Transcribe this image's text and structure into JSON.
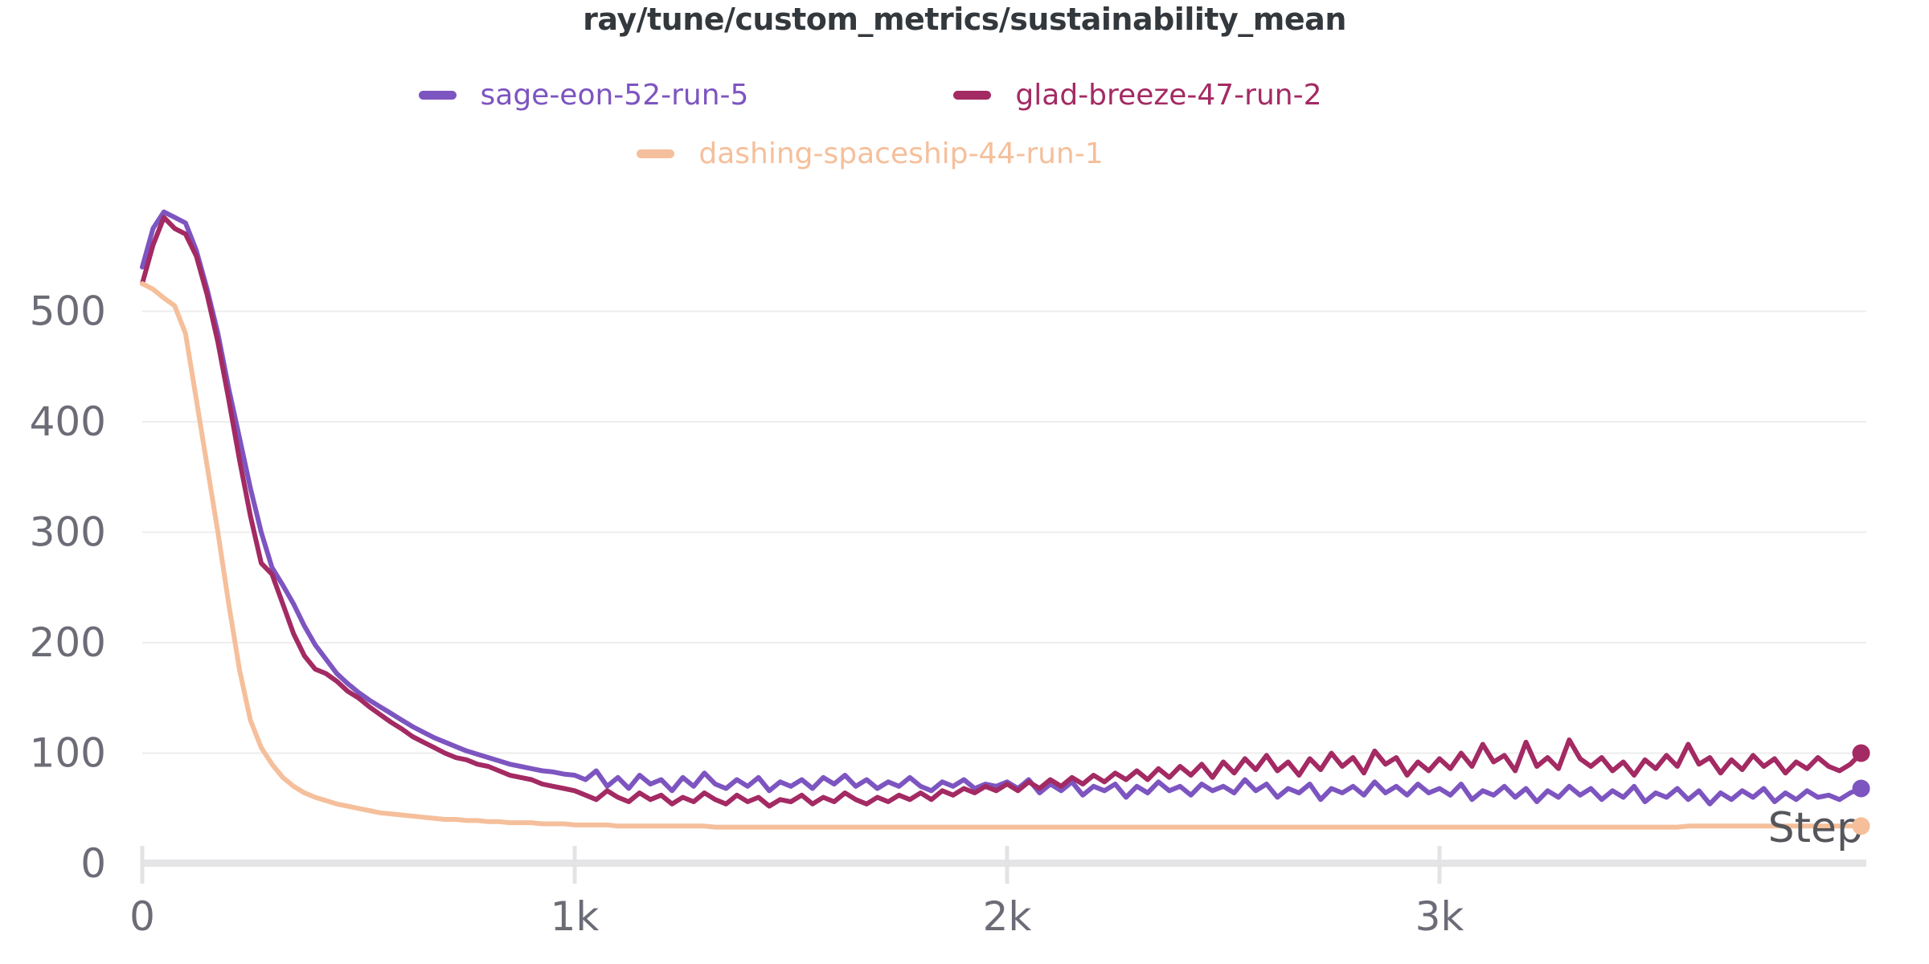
{
  "header": {
    "title": "ray/tune/custom_metrics/sustainability_mean"
  },
  "colors": {
    "title_text": "#33383d",
    "tick_text": "#6c6c77",
    "axis_label_text": "#55565c",
    "gridline": "#ededee",
    "axis_band": "#e5e5e7",
    "tick_mark": "#e3e3e5",
    "background": "#ffffff",
    "series_purple": "#7d55c0",
    "series_maroon": "#a32a63",
    "series_peach": "#f5bf9b"
  },
  "chart_data": {
    "type": "line",
    "title": "ray/tune/custom_metrics/sustainability_mean",
    "xlabel": "Step",
    "ylabel": "",
    "legend_position": "top-center",
    "grid": "horizontal",
    "xlim": [
      0,
      4000
    ],
    "ylim": [
      0,
      620
    ],
    "x_tick_values": [
      0,
      1000,
      2000,
      3000
    ],
    "x_tick_labels": [
      "0",
      "1k",
      "2k",
      "3k"
    ],
    "y_tick_values": [
      0,
      100,
      200,
      300,
      400,
      500
    ],
    "y_tick_labels": [
      "0",
      "100",
      "200",
      "300",
      "400",
      "500"
    ],
    "step_interval": 25,
    "series": [
      {
        "name": "sage-eon-52-run-5",
        "color": "#7d55c0",
        "final_value": 68,
        "values": [
          540,
          575,
          590,
          585,
          580,
          555,
          520,
          480,
          430,
          385,
          340,
          300,
          268,
          252,
          235,
          215,
          198,
          185,
          172,
          163,
          155,
          148,
          142,
          136,
          130,
          124,
          119,
          114,
          110,
          106,
          102,
          99,
          96,
          93,
          90,
          88,
          86,
          84,
          83,
          81,
          80,
          76,
          84,
          70,
          78,
          68,
          80,
          72,
          76,
          66,
          78,
          70,
          82,
          72,
          68,
          76,
          70,
          78,
          66,
          74,
          70,
          76,
          68,
          78,
          72,
          80,
          70,
          76,
          68,
          74,
          70,
          78,
          70,
          66,
          74,
          70,
          76,
          68,
          72,
          70,
          74,
          68,
          76,
          64,
          72,
          66,
          74,
          62,
          70,
          66,
          72,
          60,
          70,
          64,
          74,
          66,
          70,
          62,
          72,
          66,
          70,
          64,
          76,
          66,
          72,
          60,
          68,
          64,
          72,
          58,
          68,
          64,
          70,
          62,
          74,
          64,
          70,
          62,
          72,
          64,
          68,
          62,
          72,
          58,
          66,
          62,
          70,
          60,
          68,
          56,
          66,
          60,
          70,
          62,
          68,
          58,
          66,
          60,
          70,
          56,
          64,
          60,
          68,
          58,
          66,
          54,
          64,
          58,
          66,
          60,
          68,
          56,
          64,
          58,
          66,
          60,
          62,
          58,
          64,
          68
        ]
      },
      {
        "name": "glad-breeze-47-run-2",
        "color": "#a32a63",
        "final_value": 100,
        "values": [
          525,
          560,
          585,
          575,
          570,
          550,
          515,
          472,
          420,
          365,
          315,
          272,
          262,
          235,
          208,
          188,
          176,
          172,
          165,
          156,
          150,
          142,
          135,
          128,
          122,
          115,
          110,
          105,
          100,
          96,
          94,
          90,
          88,
          84,
          80,
          78,
          76,
          72,
          70,
          68,
          66,
          62,
          58,
          66,
          60,
          56,
          64,
          58,
          62,
          54,
          60,
          56,
          64,
          58,
          54,
          62,
          56,
          60,
          52,
          58,
          56,
          62,
          54,
          60,
          56,
          64,
          58,
          54,
          60,
          56,
          62,
          58,
          64,
          58,
          66,
          62,
          68,
          64,
          70,
          66,
          72,
          66,
          74,
          68,
          76,
          70,
          78,
          72,
          80,
          74,
          82,
          76,
          84,
          76,
          86,
          78,
          88,
          80,
          90,
          78,
          92,
          82,
          95,
          85,
          98,
          84,
          92,
          80,
          95,
          85,
          100,
          88,
          96,
          82,
          102,
          90,
          96,
          80,
          92,
          84,
          95,
          86,
          100,
          88,
          108,
          92,
          98,
          84,
          110,
          88,
          96,
          86,
          112,
          95,
          88,
          96,
          84,
          92,
          80,
          94,
          86,
          98,
          88,
          108,
          90,
          96,
          82,
          94,
          85,
          98,
          88,
          95,
          82,
          92,
          86,
          96,
          88,
          84,
          90,
          100
        ]
      },
      {
        "name": "dashing-spaceship-44-run-1",
        "color": "#f5bf9b",
        "final_value": 34,
        "values": [
          525,
          520,
          512,
          505,
          480,
          420,
          360,
          300,
          235,
          175,
          130,
          105,
          90,
          78,
          70,
          64,
          60,
          57,
          54,
          52,
          50,
          48,
          46,
          45,
          44,
          43,
          42,
          41,
          40,
          40,
          39,
          39,
          38,
          38,
          37,
          37,
          37,
          36,
          36,
          36,
          35,
          35,
          35,
          35,
          34,
          34,
          34,
          34,
          34,
          34,
          34,
          34,
          34,
          33,
          33,
          33,
          33,
          33,
          33,
          33,
          33,
          33,
          33,
          33,
          33,
          33,
          33,
          33,
          33,
          33,
          33,
          33,
          33,
          33,
          33,
          33,
          33,
          33,
          33,
          33,
          33,
          33,
          33,
          33,
          33,
          33,
          33,
          33,
          33,
          33,
          33,
          33,
          33,
          33,
          33,
          33,
          33,
          33,
          33,
          33,
          33,
          33,
          33,
          33,
          33,
          33,
          33,
          33,
          33,
          33,
          33,
          33,
          33,
          33,
          33,
          33,
          33,
          33,
          33,
          33,
          33,
          33,
          33,
          33,
          33,
          33,
          33,
          33,
          33,
          33,
          33,
          33,
          33,
          33,
          33,
          33,
          33,
          33,
          33,
          33,
          33,
          33,
          33,
          34,
          34,
          34,
          34,
          34,
          34,
          34,
          34,
          34,
          34,
          34,
          34,
          34,
          34,
          34,
          34,
          34
        ]
      }
    ]
  }
}
